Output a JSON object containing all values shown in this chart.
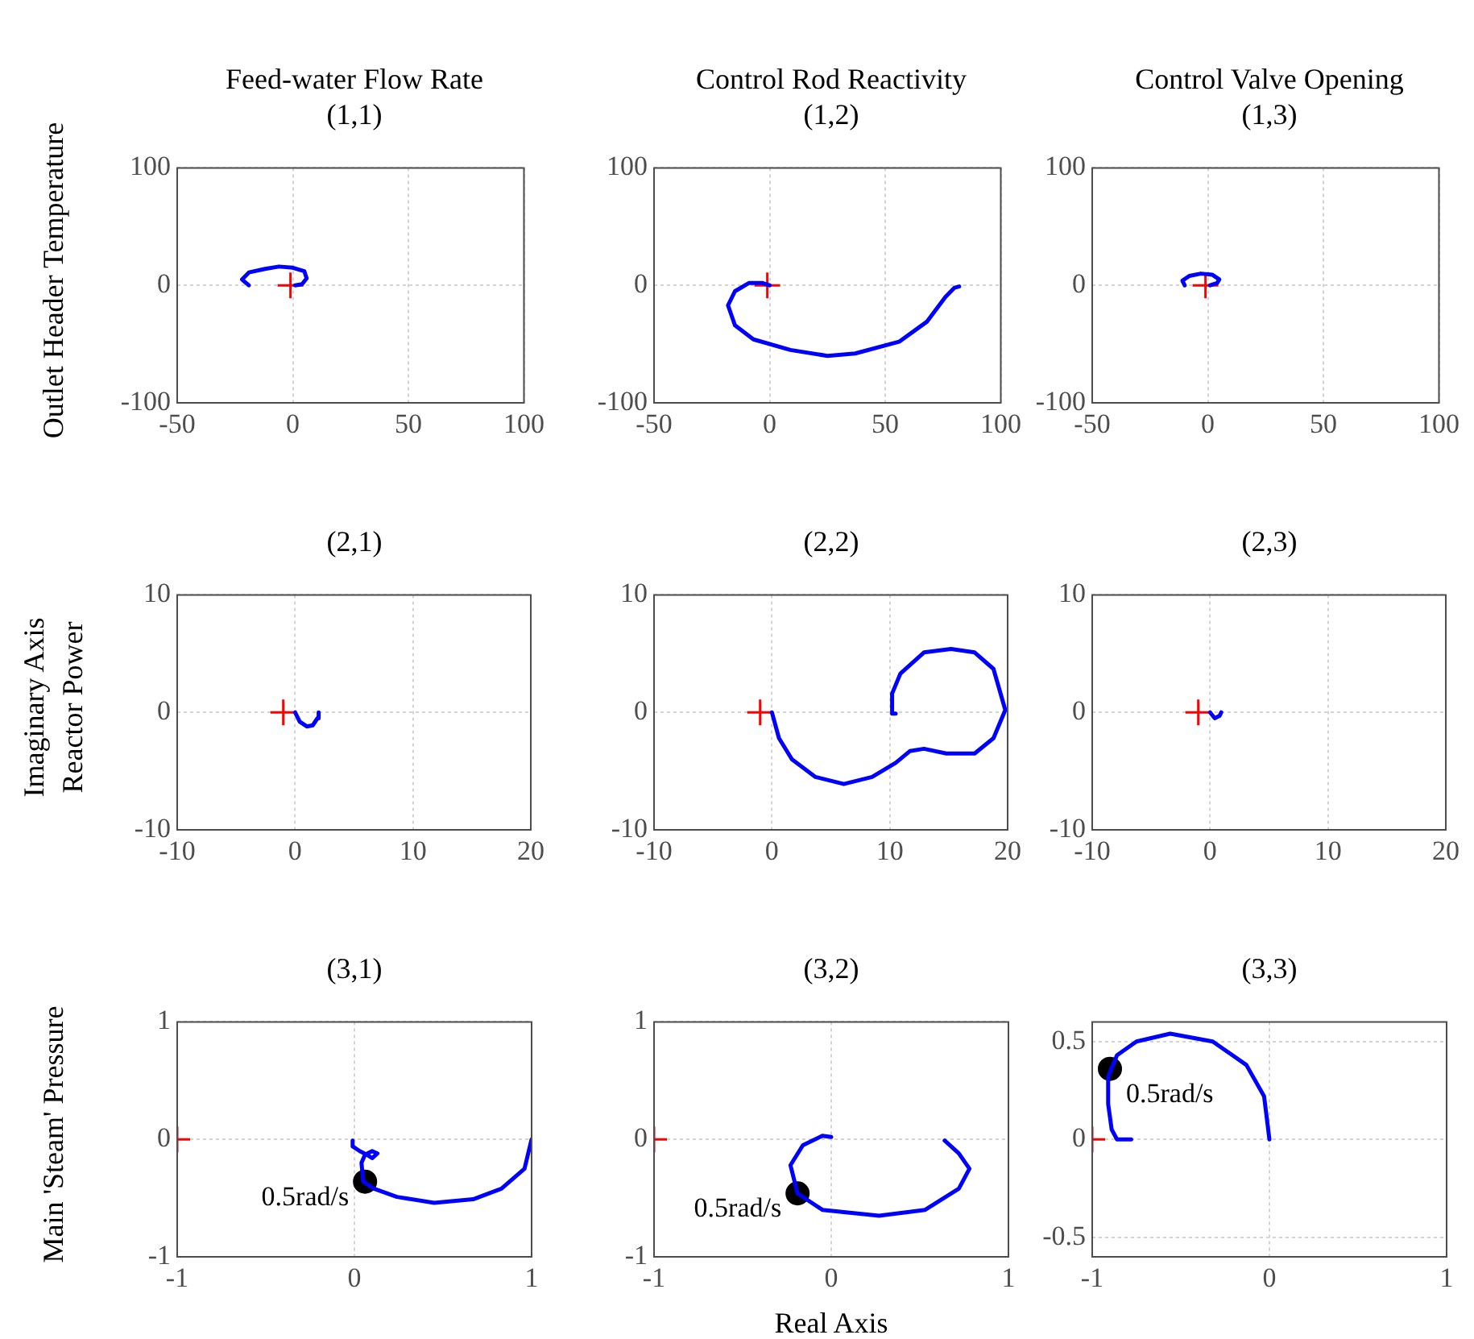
{
  "chart_data": [
    {
      "type": "line",
      "title": "Feed-water Flow Rate",
      "subtitle": "(1,1)",
      "ylabel": "Outlet Header Temperature",
      "xlim": [
        -50,
        100
      ],
      "ylim": [
        -100,
        100
      ],
      "xticks": [
        -50,
        0,
        50,
        100
      ],
      "yticks": [
        -100,
        0,
        100
      ],
      "grid": true,
      "series": [
        {
          "type": "line",
          "color": "#0000ff",
          "marker": "none",
          "x": [
            -19,
            -22,
            -19,
            -12,
            -6,
            0,
            5,
            6,
            4,
            1
          ],
          "values": [
            0,
            5,
            11,
            14,
            16,
            15,
            12,
            6,
            1,
            0
          ]
        },
        {
          "type": "scatter",
          "color": "#ff0000",
          "marker": "cross",
          "x": [
            -1
          ],
          "values": [
            0
          ]
        }
      ]
    },
    {
      "type": "line",
      "title": "Control Rod Reactivity",
      "subtitle": "(1,2)",
      "xlim": [
        -50,
        100
      ],
      "ylim": [
        -100,
        100
      ],
      "xticks": [
        -50,
        0,
        50,
        100
      ],
      "yticks": [
        -100,
        0,
        100
      ],
      "grid": true,
      "series": [
        {
          "type": "line",
          "color": "#0000ff",
          "marker": "none",
          "x": [
            82,
            80,
            76,
            68,
            56,
            37,
            25,
            9,
            -7,
            -15,
            -18,
            -15,
            -9,
            -3,
            0
          ],
          "values": [
            -1,
            -2,
            -10,
            -31,
            -48,
            -58,
            -60,
            -55,
            -46,
            -34,
            -17,
            -5,
            2,
            2,
            0
          ]
        },
        {
          "type": "scatter",
          "color": "#ff0000",
          "marker": "cross",
          "x": [
            -1
          ],
          "values": [
            0
          ]
        }
      ]
    },
    {
      "type": "line",
      "title": "Control Valve Opening",
      "subtitle": "(1,3)",
      "xlim": [
        -50,
        100
      ],
      "ylim": [
        -100,
        100
      ],
      "xticks": [
        -50,
        0,
        50,
        100
      ],
      "yticks": [
        -100,
        0,
        100
      ],
      "grid": true,
      "series": [
        {
          "type": "line",
          "color": "#0000ff",
          "marker": "none",
          "x": [
            -10,
            -11,
            -8,
            -3,
            2,
            5,
            4,
            1
          ],
          "values": [
            0,
            4,
            8,
            10,
            9,
            5,
            2,
            0
          ]
        },
        {
          "type": "scatter",
          "color": "#ff0000",
          "marker": "cross",
          "x": [
            -1
          ],
          "values": [
            0
          ]
        }
      ]
    },
    {
      "type": "line",
      "title": "(2,1)",
      "ylabel": "Reactor Power",
      "annotations": [
        "Imaginary Axis"
      ],
      "xlim": [
        -10,
        20
      ],
      "ylim": [
        -10,
        10
      ],
      "xticks": [
        -10,
        0,
        10,
        20
      ],
      "yticks": [
        -10,
        0,
        10
      ],
      "grid": true,
      "series": [
        {
          "type": "line",
          "color": "#0000ff",
          "marker": "none",
          "x": [
            0,
            0.4,
            1,
            1.5,
            1.9,
            2
          ],
          "values": [
            0,
            -0.8,
            -1.2,
            -1.1,
            -0.5,
            0
          ]
        },
        {
          "type": "scatter",
          "color": "#ff0000",
          "marker": "cross",
          "x": [
            -1
          ],
          "values": [
            0
          ]
        }
      ]
    },
    {
      "type": "line",
      "title": "(2,2)",
      "xlim": [
        -10,
        20
      ],
      "ylim": [
        -10,
        10
      ],
      "xticks": [
        -10,
        0,
        10,
        20
      ],
      "yticks": [
        -10,
        0,
        10
      ],
      "grid": true,
      "series": [
        {
          "type": "line",
          "color": "#0000ff",
          "marker": "none",
          "x": [
            0,
            0.6,
            1.7,
            3.7,
            6.1,
            8.5,
            10.5,
            11.7,
            12.9,
            14.8,
            17.2,
            18.8,
            19.8,
            18.8,
            17.2,
            15.2,
            12.9,
            10.9,
            10.2,
            10.2,
            10.5
          ],
          "values": [
            0,
            -2.2,
            -4,
            -5.5,
            -6.1,
            -5.5,
            -4.3,
            -3.3,
            -3.1,
            -3.5,
            -3.5,
            -2.2,
            0.2,
            3.7,
            5.1,
            5.4,
            5.1,
            3.3,
            1.6,
            -0.1,
            -0.1
          ]
        },
        {
          "type": "scatter",
          "color": "#ff0000",
          "marker": "cross",
          "x": [
            -1
          ],
          "values": [
            0
          ]
        }
      ]
    },
    {
      "type": "line",
      "title": "(2,3)",
      "xlim": [
        -10,
        20
      ],
      "ylim": [
        -10,
        10
      ],
      "xticks": [
        -10,
        0,
        10,
        20
      ],
      "yticks": [
        -10,
        0,
        10
      ],
      "grid": true,
      "series": [
        {
          "type": "line",
          "color": "#0000ff",
          "marker": "none",
          "x": [
            0,
            0.4,
            0.8,
            0.95
          ],
          "values": [
            0,
            -0.5,
            -0.3,
            0
          ]
        },
        {
          "type": "scatter",
          "color": "#ff0000",
          "marker": "cross",
          "x": [
            -1
          ],
          "values": [
            0
          ]
        }
      ]
    },
    {
      "type": "line",
      "title": "(3,1)",
      "ylabel": "Main 'Steam' Pressure",
      "annotations": [
        "0.5rad/s"
      ],
      "xlim": [
        -1,
        1
      ],
      "ylim": [
        -1,
        1
      ],
      "xticks": [
        -1,
        0,
        1
      ],
      "yticks": [
        -1,
        0,
        1
      ],
      "grid": true,
      "series": [
        {
          "type": "line",
          "color": "#0000ff",
          "marker": "none",
          "x": [
            1,
            0.96,
            0.83,
            0.67,
            0.45,
            0.24,
            0.11,
            0.05,
            0.04,
            0.06,
            0.1,
            0.13,
            0.1,
            0.07,
            0.03,
            -0.01,
            -0.01
          ],
          "values": [
            0,
            -0.25,
            -0.42,
            -0.51,
            -0.54,
            -0.49,
            -0.42,
            -0.36,
            -0.2,
            -0.13,
            -0.1,
            -0.12,
            -0.16,
            -0.13,
            -0.1,
            -0.06,
            -0.01
          ]
        },
        {
          "type": "scatter",
          "color": "#ff0000",
          "marker": "cross",
          "x": [
            -1
          ],
          "values": [
            0
          ]
        },
        {
          "type": "scatter",
          "color": "#000000",
          "marker": "circle",
          "x": [
            0.06
          ],
          "values": [
            -0.36
          ]
        }
      ]
    },
    {
      "type": "line",
      "title": "(3,2)",
      "xlabel": "Real Axis",
      "annotations": [
        "0.5rad/s"
      ],
      "xlim": [
        -1,
        1
      ],
      "ylim": [
        -1,
        1
      ],
      "xticks": [
        -1,
        0,
        1
      ],
      "yticks": [
        -1,
        0,
        1
      ],
      "grid": true,
      "series": [
        {
          "type": "line",
          "color": "#0000ff",
          "marker": "none",
          "x": [
            0,
            -0.05,
            -0.16,
            -0.23,
            -0.19,
            -0.05,
            0.27,
            0.53,
            0.72,
            0.78,
            0.72,
            0.64
          ],
          "values": [
            0.02,
            0.03,
            -0.05,
            -0.22,
            -0.46,
            -0.6,
            -0.65,
            -0.6,
            -0.42,
            -0.25,
            -0.12,
            -0.01
          ]
        },
        {
          "type": "scatter",
          "color": "#ff0000",
          "marker": "cross",
          "x": [
            -1
          ],
          "values": [
            0
          ]
        },
        {
          "type": "scatter",
          "color": "#000000",
          "marker": "circle",
          "x": [
            -0.19
          ],
          "values": [
            -0.46
          ]
        }
      ]
    },
    {
      "type": "line",
      "title": "(3,3)",
      "annotations": [
        "0.5rad/s"
      ],
      "xlim": [
        -1,
        1
      ],
      "ylim": [
        -0.6,
        0.6
      ],
      "xticks": [
        -1,
        0,
        1
      ],
      "yticks": [
        -0.5,
        0,
        0.5
      ],
      "grid": true,
      "series": [
        {
          "type": "line",
          "color": "#0000ff",
          "marker": "none",
          "x": [
            0,
            -0.03,
            -0.13,
            -0.32,
            -0.56,
            -0.75,
            -0.86,
            -0.91,
            -0.91,
            -0.89,
            -0.86,
            -0.78
          ],
          "values": [
            0,
            0.22,
            0.38,
            0.5,
            0.54,
            0.5,
            0.43,
            0.32,
            0.18,
            0.05,
            0,
            0
          ]
        },
        {
          "type": "scatter",
          "color": "#ff0000",
          "marker": "cross",
          "x": [
            -1
          ],
          "values": [
            0
          ]
        },
        {
          "type": "scatter",
          "color": "#000000",
          "marker": "circle",
          "x": [
            -0.9
          ],
          "values": [
            0.36
          ]
        }
      ]
    }
  ]
}
